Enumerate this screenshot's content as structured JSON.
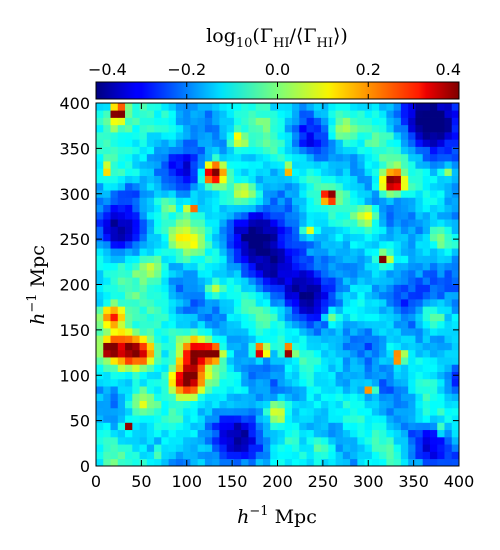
{
  "chart_data": {
    "type": "heatmap",
    "title": "",
    "colorbar": {
      "label_prefix": "log",
      "label_sub": "10",
      "label_body": "(Γ",
      "label_sub2": "HI",
      "label_mid": "/⟨Γ",
      "label_sub3": "HI",
      "label_end": "⟩)",
      "range": [
        -0.4,
        0.4
      ],
      "ticks": [
        "−0.4",
        "−0.2",
        "0.0",
        "0.2",
        "0.4"
      ],
      "tick_values": [
        -0.4,
        -0.2,
        0.0,
        0.2,
        0.4
      ],
      "colormap": "jet",
      "placement": "top"
    },
    "xlabel_pre": "h",
    "xlabel_sup": "−1",
    "xlabel_post": " Mpc",
    "ylabel_pre": "h",
    "ylabel_sup": "−1",
    "ylabel_post": " Mpc",
    "xlim": [
      0,
      400
    ],
    "ylim": [
      0,
      400
    ],
    "xticks": [
      "0",
      "50",
      "100",
      "150",
      "200",
      "250",
      "300",
      "350",
      "400"
    ],
    "xtick_values": [
      0,
      50,
      100,
      150,
      200,
      250,
      300,
      350,
      400
    ],
    "yticks": [
      "0",
      "50",
      "100",
      "150",
      "200",
      "250",
      "300",
      "350",
      "400"
    ],
    "ytick_values": [
      0,
      50,
      100,
      150,
      200,
      250,
      300,
      350,
      400
    ],
    "grid_cells": 50,
    "background_level": -0.12,
    "features": [
      {
        "x": 25,
        "y": 390,
        "v": 0.55,
        "s": 5
      },
      {
        "x": 14,
        "y": 327,
        "v": 0.35,
        "s": 3
      },
      {
        "x": 130,
        "y": 323,
        "v": 0.5,
        "s": 8
      },
      {
        "x": 212,
        "y": 327,
        "v": 0.35,
        "s": 3
      },
      {
        "x": 327,
        "y": 313,
        "v": 0.5,
        "s": 9
      },
      {
        "x": 385,
        "y": 327,
        "v": 0.4,
        "s": 3
      },
      {
        "x": 257,
        "y": 297,
        "v": 0.5,
        "s": 5
      },
      {
        "x": 105,
        "y": 285,
        "v": 0.45,
        "s": 3
      },
      {
        "x": 80,
        "y": 288,
        "v": 0.25,
        "s": 3
      },
      {
        "x": 157,
        "y": 360,
        "v": 0.15,
        "s": 6
      },
      {
        "x": 318,
        "y": 228,
        "v": 0.5,
        "s": 4
      },
      {
        "x": 27,
        "y": 130,
        "v": 0.3,
        "s": 14
      },
      {
        "x": 50,
        "y": 125,
        "v": 0.3,
        "s": 12
      },
      {
        "x": 18,
        "y": 165,
        "v": 0.25,
        "s": 9
      },
      {
        "x": 15,
        "y": 128,
        "v": 0.45,
        "s": 4
      },
      {
        "x": 110,
        "y": 125,
        "v": 0.35,
        "s": 12
      },
      {
        "x": 100,
        "y": 95,
        "v": 0.45,
        "s": 12
      },
      {
        "x": 130,
        "y": 125,
        "v": 0.35,
        "s": 6
      },
      {
        "x": 182,
        "y": 127,
        "v": 0.5,
        "s": 5
      },
      {
        "x": 212,
        "y": 127,
        "v": 0.5,
        "s": 4
      },
      {
        "x": 334,
        "y": 120,
        "v": 0.45,
        "s": 4
      },
      {
        "x": 303,
        "y": 85,
        "v": 0.45,
        "s": 3
      },
      {
        "x": 35,
        "y": 45,
        "v": 0.5,
        "s": 3
      },
      {
        "x": 130,
        "y": 195,
        "v": 0.1,
        "s": 6
      },
      {
        "x": 260,
        "y": 165,
        "v": 0.1,
        "s": 6
      },
      {
        "x": 200,
        "y": 60,
        "v": 0.12,
        "s": 8
      },
      {
        "x": 235,
        "y": 260,
        "v": 0.12,
        "s": 5
      },
      {
        "x": 70,
        "y": 15,
        "v": 0.15,
        "s": 3
      },
      {
        "x": 380,
        "y": 40,
        "v": 0.15,
        "s": 3
      },
      {
        "x": 60,
        "y": 220,
        "v": 0.08,
        "s": 10
      },
      {
        "x": 165,
        "y": 300,
        "v": 0.08,
        "s": 10
      },
      {
        "x": 370,
        "y": 165,
        "v": 0.08,
        "s": 10
      },
      {
        "x": 50,
        "y": 70,
        "v": 0.08,
        "s": 10
      },
      {
        "x": 360,
        "y": 60,
        "v": -0.05,
        "s": 10
      },
      {
        "x": 270,
        "y": 370,
        "v": 0.05,
        "s": 12
      },
      {
        "x": 380,
        "y": 250,
        "v": 0.03,
        "s": 12
      },
      {
        "x": 250,
        "y": 20,
        "v": 0.0,
        "s": 10
      },
      {
        "x": 100,
        "y": 250,
        "v": 0.05,
        "s": 12
      },
      {
        "x": 300,
        "y": 275,
        "v": 0.08,
        "s": 8
      },
      {
        "x": 20,
        "y": 380,
        "v": 0.05,
        "s": 10
      }
    ],
    "voids": [
      {
        "x": 370,
        "y": 385,
        "v": -0.45,
        "s": 24
      },
      {
        "x": 200,
        "y": 225,
        "v": -0.35,
        "s": 30
      },
      {
        "x": 350,
        "y": 190,
        "v": -0.3,
        "s": 24
      },
      {
        "x": 400,
        "y": 275,
        "v": -0.3,
        "s": 20
      },
      {
        "x": 100,
        "y": 330,
        "v": -0.3,
        "s": 18
      },
      {
        "x": 20,
        "y": 260,
        "v": -0.3,
        "s": 18
      },
      {
        "x": 160,
        "y": 30,
        "v": -0.35,
        "s": 22
      },
      {
        "x": 240,
        "y": 190,
        "v": -0.3,
        "s": 18
      },
      {
        "x": 360,
        "y": 20,
        "v": -0.3,
        "s": 18
      },
      {
        "x": 260,
        "y": 90,
        "v": -0.25,
        "s": 16
      },
      {
        "x": 175,
        "y": 260,
        "v": -0.3,
        "s": 18
      },
      {
        "x": 400,
        "y": 90,
        "v": -0.3,
        "s": 16
      },
      {
        "x": 230,
        "y": 360,
        "v": -0.25,
        "s": 15
      },
      {
        "x": 40,
        "y": 300,
        "v": -0.25,
        "s": 12
      },
      {
        "x": 300,
        "y": 140,
        "v": -0.25,
        "s": 14
      }
    ]
  }
}
